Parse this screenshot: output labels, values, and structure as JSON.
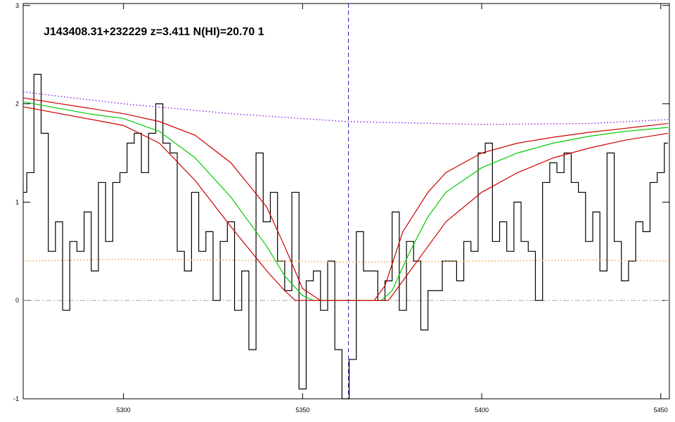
{
  "chart_data": {
    "type": "line",
    "title": "J143408.31+232229 z=3.411 N(HI)=20.70 1",
    "xlim": [
      5272,
      5452.4
    ],
    "ylim": [
      -1,
      3.02
    ],
    "xticks": [
      5300,
      5350,
      5400,
      5450
    ],
    "yticks": [
      -1,
      0,
      1,
      2,
      3
    ],
    "hlines": [
      0
    ],
    "vlines": [
      5362.8
    ],
    "series": [
      {
        "name": "flux",
        "color": "#000000",
        "style": "steps",
        "x": [
          5272,
          5274,
          5276,
          5278,
          5280,
          5282,
          5284,
          5286,
          5288,
          5290,
          5292,
          5294,
          5296,
          5298,
          5300,
          5302,
          5304,
          5306,
          5308,
          5310,
          5312,
          5314,
          5316,
          5318,
          5320,
          5322,
          5324,
          5326,
          5328,
          5330,
          5332,
          5334,
          5336,
          5338,
          5340,
          5342,
          5344,
          5346,
          5348,
          5350,
          5352,
          5354,
          5356,
          5358,
          5360,
          5362,
          5364,
          5366,
          5368,
          5370,
          5372,
          5374,
          5376,
          5378,
          5380,
          5382,
          5384,
          5386,
          5388,
          5390,
          5392,
          5394,
          5396,
          5398,
          5400,
          5402,
          5404,
          5406,
          5408,
          5410,
          5412,
          5414,
          5416,
          5418,
          5420,
          5422,
          5424,
          5426,
          5428,
          5430,
          5432,
          5434,
          5436,
          5438,
          5440,
          5442,
          5444,
          5446,
          5448,
          5450,
          5452
        ],
        "values": [
          1.1,
          1.3,
          2.3,
          1.7,
          0.5,
          0.8,
          -0.1,
          0.6,
          0.5,
          0.9,
          0.3,
          1.2,
          0.6,
          1.2,
          1.3,
          1.6,
          1.7,
          1.3,
          1.7,
          2.0,
          1.6,
          1.5,
          0.5,
          0.3,
          1.1,
          0.5,
          0.7,
          0.0,
          0.6,
          0.8,
          -0.1,
          0.3,
          -0.5,
          1.5,
          0.8,
          1.1,
          0.4,
          0.1,
          1.1,
          -0.9,
          0.2,
          0.3,
          -0.1,
          0.4,
          -0.5,
          -1.0,
          -0.6,
          0.7,
          0.3,
          0.3,
          0.0,
          0.2,
          0.9,
          -0.1,
          0.6,
          0.4,
          -0.3,
          0.1,
          0.1,
          0.4,
          0.4,
          0.2,
          0.6,
          0.5,
          1.5,
          1.6,
          0.6,
          0.8,
          0.5,
          1.0,
          0.6,
          0.5,
          0.0,
          1.2,
          1.4,
          1.3,
          1.5,
          1.2,
          1.1,
          0.6,
          0.9,
          0.3,
          1.5,
          0.6,
          0.2,
          0.4,
          0.8,
          0.7,
          1.2,
          1.3,
          1.6
        ]
      },
      {
        "name": "continuum",
        "color": "#8a2be2",
        "style": "dotted",
        "x": [
          5272,
          5300,
          5330,
          5362,
          5400,
          5430,
          5452
        ],
        "values": [
          2.12,
          2.0,
          1.9,
          1.82,
          1.79,
          1.8,
          1.84
        ]
      },
      {
        "name": "error",
        "color": "#f0a040",
        "style": "dotted",
        "x": [
          5272,
          5300,
          5330,
          5362,
          5400,
          5430,
          5452
        ],
        "values": [
          0.4,
          0.42,
          0.41,
          0.39,
          0.4,
          0.41,
          0.4
        ]
      },
      {
        "name": "model-upper",
        "color": "#cc0000",
        "style": "solid",
        "x": [
          5272,
          5300,
          5310,
          5320,
          5330,
          5340,
          5345,
          5350,
          5355,
          5370,
          5373,
          5378,
          5385,
          5390,
          5400,
          5410,
          5420,
          5430,
          5440,
          5452
        ],
        "values": [
          2.06,
          1.9,
          1.82,
          1.68,
          1.4,
          0.95,
          0.55,
          0.12,
          0.0,
          0.0,
          0.15,
          0.7,
          1.1,
          1.3,
          1.5,
          1.6,
          1.66,
          1.71,
          1.75,
          1.8
        ]
      },
      {
        "name": "model",
        "color": "#00cc00",
        "style": "solid",
        "x": [
          5272,
          5290,
          5300,
          5310,
          5320,
          5330,
          5340,
          5345,
          5350,
          5353,
          5372,
          5375,
          5380,
          5385,
          5390,
          5400,
          5410,
          5420,
          5430,
          5440,
          5452
        ],
        "values": [
          2.02,
          1.9,
          1.85,
          1.72,
          1.45,
          1.05,
          0.55,
          0.25,
          0.05,
          0.0,
          0.0,
          0.1,
          0.5,
          0.85,
          1.1,
          1.35,
          1.5,
          1.6,
          1.67,
          1.72,
          1.76
        ]
      },
      {
        "name": "model-lower",
        "color": "#cc0000",
        "style": "solid",
        "x": [
          5272,
          5300,
          5310,
          5320,
          5330,
          5340,
          5345,
          5348,
          5374,
          5378,
          5385,
          5390,
          5400,
          5410,
          5420,
          5430,
          5440,
          5452
        ],
        "values": [
          1.97,
          1.78,
          1.6,
          1.22,
          0.75,
          0.3,
          0.1,
          0.0,
          0.0,
          0.2,
          0.55,
          0.8,
          1.1,
          1.3,
          1.45,
          1.55,
          1.63,
          1.7
        ]
      }
    ]
  }
}
